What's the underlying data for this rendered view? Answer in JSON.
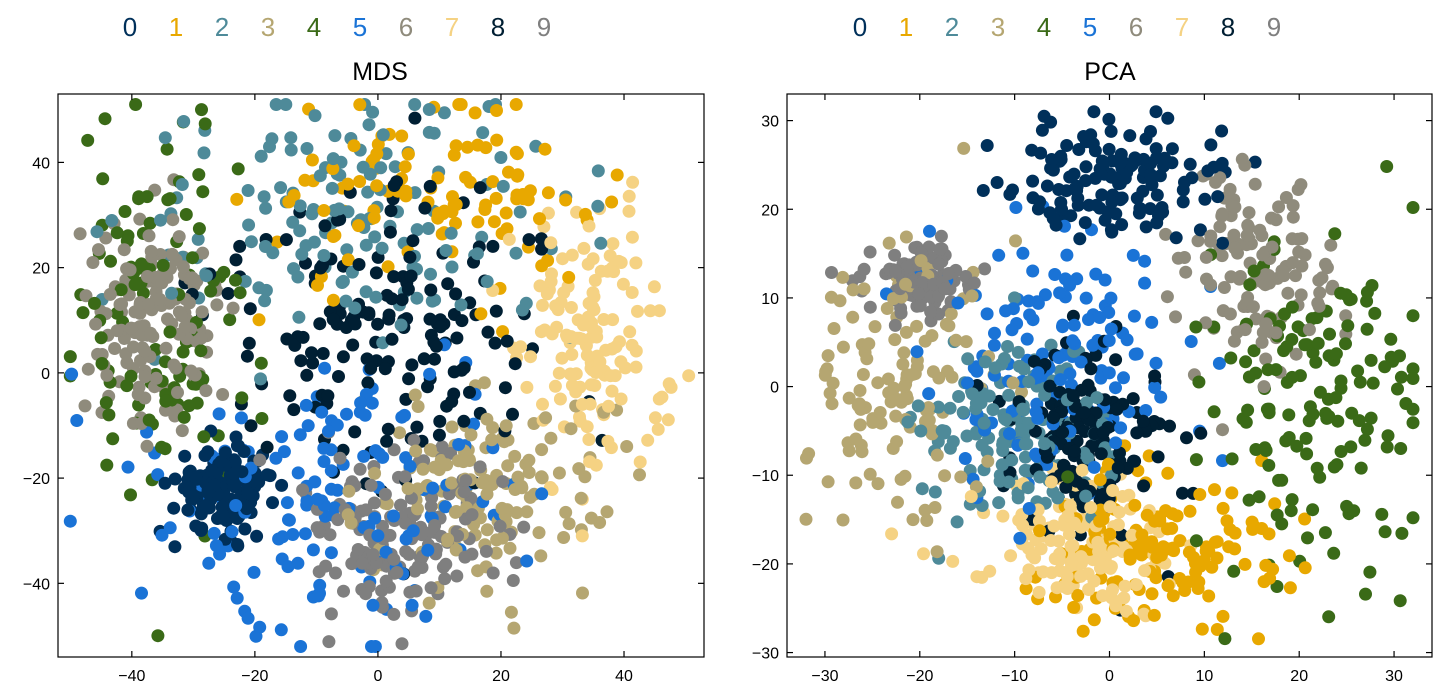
{
  "palette": {
    "0": "#00305a",
    "1": "#e8a800",
    "2": "#4e8a99",
    "3": "#b5a671",
    "4": "#3a6a17",
    "5": "#1a73d6",
    "6": "#8f8b7c",
    "7": "#f5d283",
    "8": "#001f33",
    "9": "#7f7f7f"
  },
  "chart_data": [
    {
      "type": "scatter",
      "title": "MDS",
      "xlabel": "",
      "ylabel": "",
      "xlim": [
        -52,
        53
      ],
      "ylim": [
        -54,
        53
      ],
      "xticks": [
        -40,
        -20,
        0,
        20,
        40
      ],
      "yticks": [
        -40,
        -20,
        0,
        20,
        40
      ],
      "xtick_labels": [
        "−40",
        "−20",
        "0",
        "20",
        "40"
      ],
      "ytick_labels": [
        "−40",
        "−20",
        "0",
        "20",
        "40"
      ],
      "grid": false,
      "legend": {
        "placement": "top",
        "entries": [
          "0",
          "1",
          "2",
          "3",
          "4",
          "5",
          "6",
          "7",
          "8",
          "9"
        ]
      },
      "clusters": [
        {
          "label": "0",
          "center": [
            -25,
            -22
          ],
          "spread": [
            4,
            4
          ],
          "count": 150
        },
        {
          "label": "1",
          "center": [
            8,
            33
          ],
          "spread": [
            14,
            8
          ],
          "count": 110
        },
        {
          "label": "2",
          "center": [
            -3,
            30
          ],
          "spread": [
            18,
            12
          ],
          "count": 150
        },
        {
          "label": "3",
          "center": [
            17,
            -22
          ],
          "spread": [
            10,
            9
          ],
          "count": 140
        },
        {
          "label": "4",
          "center": [
            -36,
            10
          ],
          "spread": [
            8,
            20
          ],
          "count": 110
        },
        {
          "label": "5",
          "center": [
            -5,
            -22
          ],
          "spread": [
            15,
            14
          ],
          "count": 150
        },
        {
          "label": "6",
          "center": [
            -36,
            10
          ],
          "spread": [
            5,
            10
          ],
          "count": 150
        },
        {
          "label": "7",
          "center": [
            35,
            5
          ],
          "spread": [
            6,
            12
          ],
          "count": 150
        },
        {
          "label": "8",
          "center": [
            0,
            10
          ],
          "spread": [
            15,
            15
          ],
          "count": 170
        },
        {
          "label": "9",
          "center": [
            5,
            -30
          ],
          "spread": [
            9,
            8
          ],
          "count": 150
        }
      ]
    },
    {
      "type": "scatter",
      "title": "PCA",
      "xlabel": "",
      "ylabel": "",
      "xlim": [
        -34,
        34
      ],
      "ylim": [
        -30.5,
        33
      ],
      "xticks": [
        -30,
        -20,
        -10,
        0,
        10,
        20,
        30
      ],
      "yticks": [
        -30,
        -20,
        -10,
        0,
        10,
        20,
        30
      ],
      "xtick_labels": [
        "−30",
        "−20",
        "−10",
        "0",
        "10",
        "20",
        "30"
      ],
      "ytick_labels": [
        "−30",
        "−20",
        "−10",
        "0",
        "10",
        "20",
        "30"
      ],
      "grid": false,
      "legend": {
        "placement": "top",
        "entries": [
          "0",
          "1",
          "2",
          "3",
          "4",
          "5",
          "6",
          "7",
          "8",
          "9"
        ]
      },
      "clusters": [
        {
          "label": "0",
          "center": [
            1,
            23
          ],
          "spread": [
            6,
            3.5
          ],
          "count": 140
        },
        {
          "label": "1",
          "center": [
            6,
            -18
          ],
          "spread": [
            6,
            5
          ],
          "count": 140
        },
        {
          "label": "2",
          "center": [
            -10,
            -6
          ],
          "spread": [
            5,
            5
          ],
          "count": 150
        },
        {
          "label": "3",
          "center": [
            -22,
            1
          ],
          "spread": [
            5,
            8
          ],
          "count": 130
        },
        {
          "label": "4",
          "center": [
            22,
            -2
          ],
          "spread": [
            6,
            9
          ],
          "count": 150
        },
        {
          "label": "5",
          "center": [
            -6,
            3
          ],
          "spread": [
            7,
            7
          ],
          "count": 150
        },
        {
          "label": "6",
          "center": [
            15,
            12
          ],
          "spread": [
            4,
            6
          ],
          "count": 130
        },
        {
          "label": "7",
          "center": [
            -3,
            -18
          ],
          "spread": [
            5,
            3.5
          ],
          "count": 150
        },
        {
          "label": "8",
          "center": [
            -2,
            -5
          ],
          "spread": [
            4,
            6
          ],
          "count": 150
        },
        {
          "label": "9",
          "center": [
            -20,
            12
          ],
          "spread": [
            3,
            2
          ],
          "count": 100
        }
      ]
    }
  ]
}
